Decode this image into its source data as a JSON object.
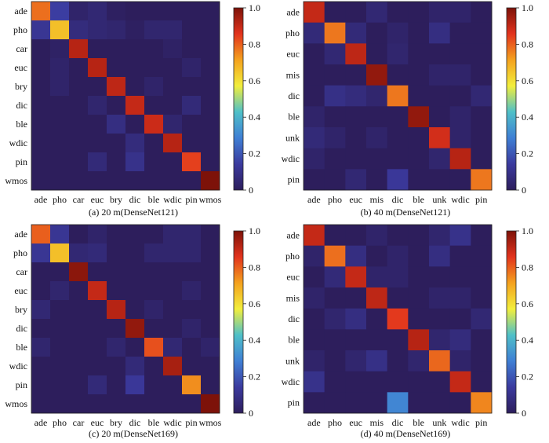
{
  "colorbar": {
    "ticks": [
      "0",
      "0.2",
      "0.4",
      "0.6",
      "0.8",
      "1.0"
    ],
    "stops": [
      "#2d1e5c",
      "#3b3a9e",
      "#3f7fd4",
      "#4fc0c8",
      "#f2ee3c",
      "#f4a21e",
      "#e2331d",
      "#7d1209"
    ]
  },
  "chart_data": [
    {
      "type": "heatmap",
      "caption": "(a) 20 m(DenseNet121)",
      "x": [
        "ade",
        "pho",
        "car",
        "euc",
        "bry",
        "dic",
        "ble",
        "wdic",
        "pin",
        "wmos"
      ],
      "y": [
        "ade",
        "pho",
        "car",
        "euc",
        "bry",
        "dic",
        "ble",
        "wdic",
        "pin",
        "wmos"
      ],
      "zlim": [
        0,
        1
      ],
      "z": [
        [
          0.78,
          0.15,
          0.03,
          0.05,
          0.01,
          0.0,
          0.0,
          0.0,
          0.0,
          0.0
        ],
        [
          0.12,
          0.66,
          0.07,
          0.05,
          0.04,
          0.01,
          0.04,
          0.04,
          0.0,
          0.0
        ],
        [
          0.0,
          0.02,
          0.92,
          0.0,
          0.0,
          0.0,
          0.0,
          0.02,
          0.0,
          0.0
        ],
        [
          0.0,
          0.03,
          0.0,
          0.92,
          0.0,
          0.0,
          0.0,
          0.0,
          0.03,
          0.0
        ],
        [
          0.0,
          0.03,
          0.0,
          0.0,
          0.91,
          0.0,
          0.03,
          0.0,
          0.0,
          0.0
        ],
        [
          0.0,
          0.0,
          0.0,
          0.04,
          0.0,
          0.9,
          0.0,
          0.0,
          0.06,
          0.0
        ],
        [
          0.0,
          0.0,
          0.0,
          0.0,
          0.08,
          0.0,
          0.89,
          0.04,
          0.0,
          0.0
        ],
        [
          0.0,
          0.0,
          0.0,
          0.0,
          0.0,
          0.07,
          0.0,
          0.92,
          0.0,
          0.0
        ],
        [
          0.0,
          0.0,
          0.0,
          0.06,
          0.0,
          0.1,
          0.0,
          0.0,
          0.84,
          0.0
        ],
        [
          0.0,
          0.0,
          0.0,
          0.0,
          0.0,
          0.0,
          0.0,
          0.0,
          0.0,
          1.0
        ]
      ]
    },
    {
      "type": "heatmap",
      "caption": "(b) 40 m(DenseNet121)",
      "x": [
        "ade",
        "pho",
        "euc",
        "mis",
        "dic",
        "ble",
        "unk",
        "wdic",
        "pin"
      ],
      "y": [
        "ade",
        "pho",
        "euc",
        "mis",
        "dic",
        "ble",
        "unk",
        "wdic",
        "pin"
      ],
      "zlim": [
        0,
        1
      ],
      "z": [
        [
          0.9,
          0.0,
          0.0,
          0.05,
          0.0,
          0.0,
          0.03,
          0.03,
          0.0
        ],
        [
          0.06,
          0.77,
          0.06,
          0.0,
          0.03,
          0.0,
          0.08,
          0.0,
          0.0
        ],
        [
          0.0,
          0.05,
          0.91,
          0.0,
          0.04,
          0.0,
          0.0,
          0.0,
          0.0
        ],
        [
          0.0,
          0.0,
          0.0,
          0.97,
          0.0,
          0.0,
          0.03,
          0.03,
          0.0
        ],
        [
          0.0,
          0.09,
          0.07,
          0.04,
          0.77,
          0.0,
          0.0,
          0.0,
          0.05
        ],
        [
          0.03,
          0.0,
          0.0,
          0.0,
          0.0,
          0.97,
          0.0,
          0.03,
          0.0
        ],
        [
          0.06,
          0.03,
          0.0,
          0.03,
          0.0,
          0.0,
          0.88,
          0.03,
          0.0
        ],
        [
          0.03,
          0.0,
          0.0,
          0.0,
          0.0,
          0.0,
          0.04,
          0.92,
          0.0
        ],
        [
          0.0,
          0.0,
          0.05,
          0.0,
          0.13,
          0.0,
          0.0,
          0.0,
          0.77
        ]
      ]
    },
    {
      "type": "heatmap",
      "caption": "(c) 20 m(DenseNet169)",
      "x": [
        "ade",
        "pho",
        "car",
        "euc",
        "bry",
        "dic",
        "ble",
        "wdic",
        "pin",
        "wmos"
      ],
      "y": [
        "ade",
        "pho",
        "car",
        "euc",
        "bry",
        "dic",
        "ble",
        "wdic",
        "pin",
        "wmos"
      ],
      "zlim": [
        0,
        1
      ],
      "z": [
        [
          0.8,
          0.12,
          0.0,
          0.03,
          0.0,
          0.0,
          0.0,
          0.04,
          0.04,
          0.0
        ],
        [
          0.12,
          0.66,
          0.05,
          0.06,
          0.0,
          0.0,
          0.04,
          0.04,
          0.04,
          0.0
        ],
        [
          0.0,
          0.0,
          0.98,
          0.0,
          0.0,
          0.0,
          0.0,
          0.0,
          0.0,
          0.0
        ],
        [
          0.0,
          0.04,
          0.0,
          0.9,
          0.0,
          0.0,
          0.0,
          0.0,
          0.03,
          0.0
        ],
        [
          0.05,
          0.0,
          0.0,
          0.0,
          0.92,
          0.0,
          0.03,
          0.0,
          0.0,
          0.0
        ],
        [
          0.0,
          0.0,
          0.0,
          0.0,
          0.0,
          0.97,
          0.0,
          0.0,
          0.03,
          0.0
        ],
        [
          0.04,
          0.0,
          0.0,
          0.0,
          0.04,
          0.0,
          0.82,
          0.05,
          0.0,
          0.03
        ],
        [
          0.0,
          0.0,
          0.0,
          0.0,
          0.0,
          0.06,
          0.0,
          0.94,
          0.0,
          0.0
        ],
        [
          0.0,
          0.0,
          0.0,
          0.06,
          0.0,
          0.13,
          0.0,
          0.0,
          0.74,
          0.0
        ],
        [
          0.0,
          0.0,
          0.0,
          0.0,
          0.0,
          0.0,
          0.0,
          0.0,
          0.0,
          1.0
        ]
      ]
    },
    {
      "type": "heatmap",
      "caption": "(d) 40 m(DenseNet169)",
      "x": [
        "ade",
        "pho",
        "euc",
        "mis",
        "dic",
        "ble",
        "unk",
        "wdic",
        "pin"
      ],
      "y": [
        "ade",
        "pho",
        "euc",
        "mis",
        "dic",
        "ble",
        "unk",
        "wdic",
        "pin"
      ],
      "zlim": [
        0,
        1
      ],
      "z": [
        [
          0.9,
          0.0,
          0.0,
          0.03,
          0.0,
          0.0,
          0.04,
          0.1,
          0.0
        ],
        [
          0.03,
          0.78,
          0.08,
          0.0,
          0.03,
          0.0,
          0.08,
          0.0,
          0.0
        ],
        [
          0.0,
          0.06,
          0.9,
          0.03,
          0.03,
          0.0,
          0.0,
          0.0,
          0.0
        ],
        [
          0.03,
          0.0,
          0.0,
          0.91,
          0.0,
          0.0,
          0.03,
          0.03,
          0.0
        ],
        [
          0.0,
          0.04,
          0.08,
          0.0,
          0.85,
          0.0,
          0.0,
          0.0,
          0.05
        ],
        [
          0.0,
          0.0,
          0.0,
          0.0,
          0.0,
          0.92,
          0.04,
          0.07,
          0.0
        ],
        [
          0.03,
          0.0,
          0.04,
          0.09,
          0.0,
          0.04,
          0.79,
          0.03,
          0.0
        ],
        [
          0.1,
          0.0,
          0.0,
          0.0,
          0.0,
          0.0,
          0.0,
          0.9,
          0.0
        ],
        [
          0.0,
          0.0,
          0.0,
          0.0,
          0.3,
          0.0,
          0.0,
          0.0,
          0.75
        ]
      ]
    }
  ]
}
